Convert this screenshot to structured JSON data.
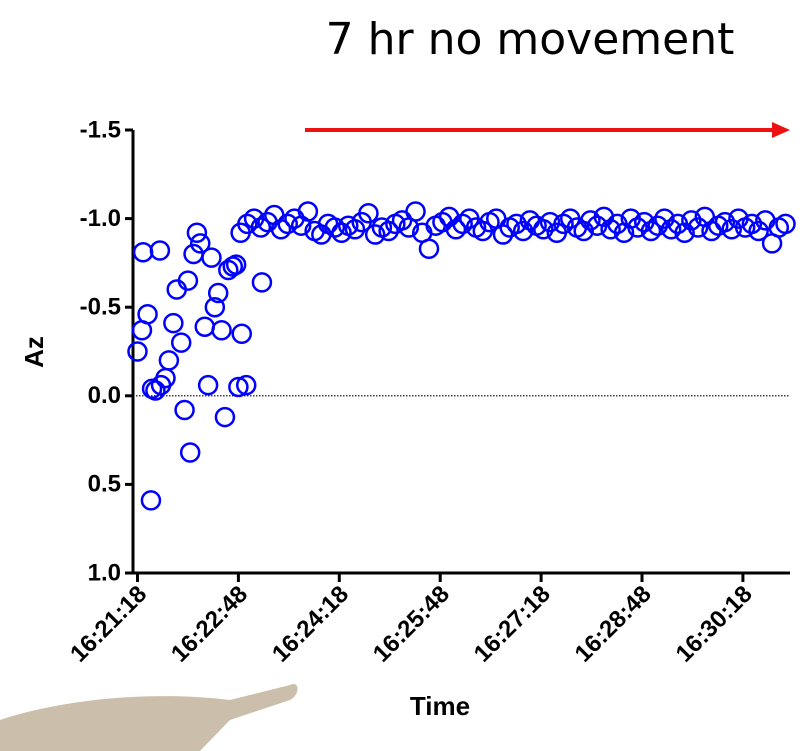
{
  "chart_data": {
    "type": "scatter",
    "annotation": "7 hr no movement",
    "y_label": "Az",
    "x_label": "Time",
    "color": "#0000ff",
    "y_inverted": true,
    "ylim": [
      -1.5,
      1.0
    ],
    "yticks": [
      {
        "value": -1.5,
        "label": "-1.5"
      },
      {
        "value": -1,
        "label": "-1.0"
      },
      -0.5,
      {
        "value": 0,
        "label": "0.0"
      },
      0.5,
      {
        "value": 1,
        "label": "1.0"
      }
    ],
    "reference_line": 0,
    "xlim": [
      "16:21:14",
      "16:31:00"
    ],
    "xticks": [
      "16:21:18",
      "16:22:48",
      "16:24:18",
      "16:25:48",
      "16:27:18",
      "16:28:48",
      "16:30:18"
    ],
    "x": [
      "16:21:18",
      "16:21:22",
      "16:21:23",
      "16:21:27",
      "16:21:30",
      "16:21:31",
      "16:21:34",
      "16:21:38",
      "16:21:39",
      "16:21:43",
      "16:21:46",
      "16:21:50",
      "16:21:53",
      "16:21:57",
      "16:22:00",
      "16:22:03",
      "16:22:05",
      "16:22:08",
      "16:22:11",
      "16:22:14",
      "16:22:18",
      "16:22:21",
      "16:22:24",
      "16:22:27",
      "16:22:30",
      "16:22:33",
      "16:22:36",
      "16:22:39",
      "16:22:43",
      "16:22:46",
      "16:22:48",
      "16:22:51",
      "16:22:55",
      "16:23:09",
      "16:22:50",
      "16:22:56",
      "16:23:02",
      "16:23:08",
      "16:23:14",
      "16:23:20",
      "16:23:26",
      "16:23:32",
      "16:23:38",
      "16:23:44",
      "16:23:50",
      "16:23:56",
      "16:24:02",
      "16:24:08",
      "16:24:14",
      "16:24:20",
      "16:24:26",
      "16:24:32",
      "16:24:38",
      "16:24:44",
      "16:24:50",
      "16:24:56",
      "16:25:02",
      "16:25:08",
      "16:25:14",
      "16:25:20",
      "16:25:26",
      "16:25:32",
      "16:25:38",
      "16:25:44",
      "16:25:50",
      "16:25:56",
      "16:26:02",
      "16:26:08",
      "16:26:14",
      "16:26:20",
      "16:26:26",
      "16:26:32",
      "16:26:38",
      "16:26:44",
      "16:26:50",
      "16:26:56",
      "16:27:02",
      "16:27:08",
      "16:27:14",
      "16:27:20",
      "16:27:26",
      "16:27:32",
      "16:27:38",
      "16:27:44",
      "16:27:50",
      "16:27:56",
      "16:28:02",
      "16:28:08",
      "16:28:14",
      "16:28:20",
      "16:28:26",
      "16:28:32",
      "16:28:38",
      "16:28:44",
      "16:28:50",
      "16:28:56",
      "16:29:02",
      "16:29:08",
      "16:29:14",
      "16:29:20",
      "16:29:26",
      "16:29:32",
      "16:29:38",
      "16:29:44",
      "16:29:50",
      "16:29:56",
      "16:30:02",
      "16:30:08",
      "16:30:14",
      "16:30:20",
      "16:30:26",
      "16:30:32",
      "16:30:38",
      "16:30:44",
      "16:30:50",
      "16:30:56"
    ],
    "values": [
      -0.25,
      -0.37,
      -0.81,
      -0.46,
      0.59,
      -0.04,
      -0.03,
      -0.82,
      -0.06,
      -0.1,
      -0.2,
      -0.41,
      -0.6,
      -0.3,
      0.08,
      -0.65,
      0.32,
      -0.8,
      -0.92,
      -0.86,
      -0.39,
      -0.06,
      -0.78,
      -0.5,
      -0.58,
      -0.37,
      0.12,
      -0.71,
      -0.73,
      -0.74,
      -0.05,
      -0.35,
      -0.06,
      -0.64,
      -0.92,
      -0.97,
      -1.0,
      -0.95,
      -0.98,
      -1.02,
      -0.94,
      -0.97,
      -1.0,
      -0.96,
      -1.04,
      -0.93,
      -0.91,
      -0.97,
      -0.95,
      -0.92,
      -0.96,
      -0.94,
      -0.98,
      -1.03,
      -0.91,
      -0.95,
      -0.93,
      -0.97,
      -0.99,
      -0.95,
      -1.04,
      -0.92,
      -0.83,
      -0.96,
      -0.98,
      -1.01,
      -0.94,
      -0.97,
      -1.0,
      -0.95,
      -0.93,
      -0.98,
      -1.0,
      -0.91,
      -0.95,
      -0.97,
      -0.93,
      -0.99,
      -0.96,
      -0.94,
      -0.98,
      -0.92,
      -0.97,
      -1.0,
      -0.95,
      -0.93,
      -0.99,
      -0.96,
      -1.01,
      -0.94,
      -0.97,
      -0.92,
      -1.0,
      -0.95,
      -0.98,
      -0.93,
      -0.96,
      -1.0,
      -0.94,
      -0.97,
      -0.92,
      -0.99,
      -0.95,
      -1.01,
      -0.93,
      -0.96,
      -0.98,
      -0.94,
      -1.0,
      -0.95,
      -0.97,
      -0.93,
      -0.99,
      -0.86,
      -0.95,
      -0.97
    ]
  }
}
